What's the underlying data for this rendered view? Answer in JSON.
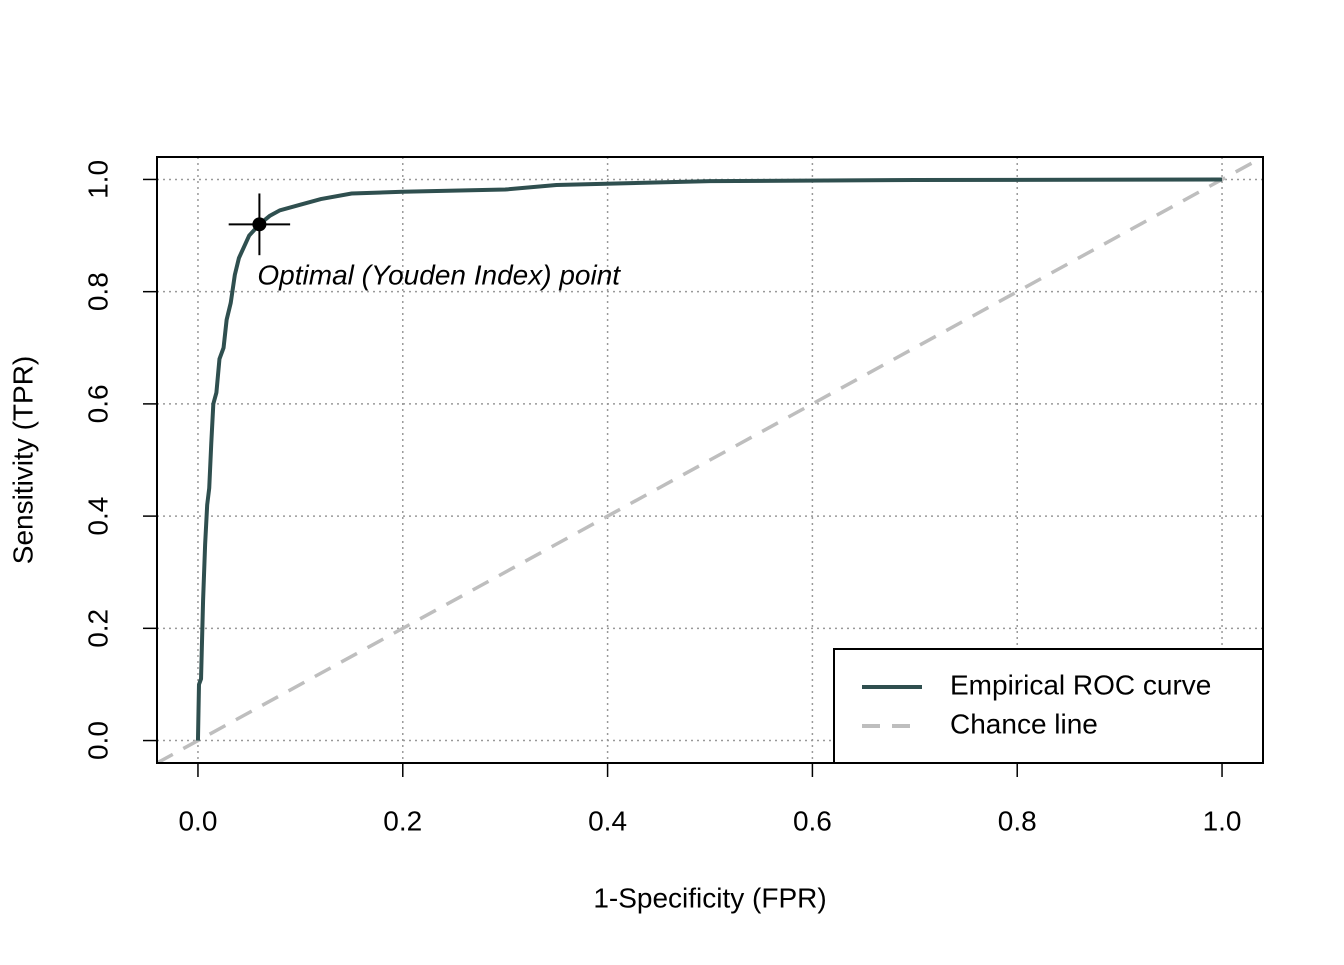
{
  "chart_data": {
    "type": "line",
    "xlabel": "1-Specificity (FPR)",
    "ylabel": "Sensitivity (TPR)",
    "annotation": "Optimal (Youden Index) point",
    "xlim": [
      -0.04,
      1.04
    ],
    "ylim": [
      -0.04,
      1.04
    ],
    "xticks": [
      {
        "value": 0,
        "label": "0.0"
      },
      0.2,
      0.4,
      0.6,
      0.8,
      {
        "value": 1,
        "label": "1.0"
      }
    ],
    "yticks": [
      {
        "value": 0,
        "label": "0.0"
      },
      0.2,
      0.4,
      0.6,
      0.8,
      {
        "value": 1,
        "label": "1.0"
      }
    ],
    "grid": true,
    "legend": "bottomright",
    "series": [
      {
        "name": "Empirical ROC curve",
        "color": "#2f4f4f",
        "style": "solid",
        "x": [
          0,
          0.001,
          0.003,
          0.005,
          0.007,
          0.009,
          0.011,
          0.013,
          0.015,
          0.018,
          0.021,
          0.025,
          0.028,
          0.032,
          0.036,
          0.04,
          0.045,
          0.05,
          0.06,
          0.07,
          0.08,
          0.1,
          0.12,
          0.15,
          0.2,
          0.3,
          0.35,
          0.5,
          0.7,
          1
        ],
        "values": [
          0,
          0.1,
          0.11,
          0.25,
          0.35,
          0.42,
          0.45,
          0.53,
          0.6,
          0.62,
          0.68,
          0.7,
          0.75,
          0.78,
          0.83,
          0.86,
          0.88,
          0.9,
          0.92,
          0.935,
          0.945,
          0.955,
          0.965,
          0.975,
          0.978,
          0.982,
          0.99,
          0.997,
          0.999,
          1
        ]
      },
      {
        "name": "Chance line",
        "color": "#bebebe",
        "style": "dashed",
        "x": [
          -0.04,
          1.04
        ],
        "values": [
          -0.04,
          1.04
        ]
      }
    ],
    "optimal_point": {
      "x": 0.06,
      "y": 0.92,
      "x_error": 0.03,
      "y_error": 0.055,
      "color": "#000000"
    }
  }
}
